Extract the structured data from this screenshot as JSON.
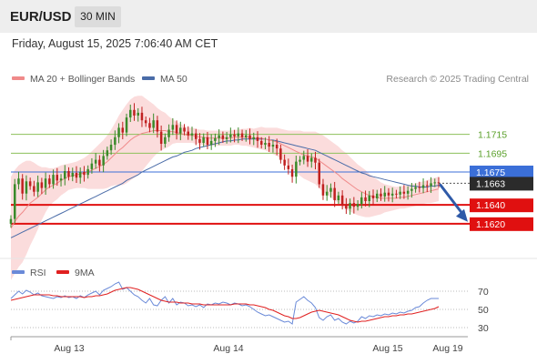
{
  "header": {
    "symbol": "EUR/USD",
    "timeframe": "30 MIN"
  },
  "datetime": "Friday, August 15, 2025 7:06:40 AM CET",
  "legend": {
    "ma20": "MA 20 + Bollinger Bands",
    "ma50": "MA 50",
    "credit": "Research © 2025 Trading Central"
  },
  "rsi_legend": {
    "rsi": "RSI",
    "ma9": "9MA"
  },
  "colors": {
    "ma20": "#f08a8a",
    "bollinger_fill": "#fbdcdc",
    "ma50": "#4a6ca8",
    "green_level": "#8cc05a",
    "green_text": "#5aa02a",
    "blue_level": "#3b6fd8",
    "red_level": "#e01010",
    "price_box": "#2b2b2b",
    "arrow": "#2f5aa8",
    "candle_up": "#3a8a2a",
    "candle_down": "#c02020",
    "rsi_line": "#6a8ad8",
    "rsi_ma": "#e02020"
  },
  "chart_data": [
    {
      "type": "candlestick",
      "title": "EUR/USD 30 MIN",
      "ylim": [
        1.1585,
        1.1765
      ],
      "x_ticks": [
        "Aug 13",
        "Aug 14",
        "Aug 15",
        "Aug 19"
      ],
      "levels": [
        {
          "value": 1.1715,
          "label": "1.1715",
          "kind": "resistance",
          "style": "green"
        },
        {
          "value": 1.1695,
          "label": "1.1695",
          "kind": "resistance",
          "style": "green"
        },
        {
          "value": 1.1675,
          "label": "1.1675",
          "kind": "resistance",
          "style": "blue"
        },
        {
          "value": 1.164,
          "label": "1.1640",
          "kind": "support",
          "style": "red"
        },
        {
          "value": 1.162,
          "label": "1.1620",
          "kind": "support",
          "style": "red"
        }
      ],
      "last_price": {
        "value": 1.1663,
        "label": "1.1663"
      },
      "forecast": {
        "from": 1.1663,
        "to": 1.1622,
        "direction": "down"
      },
      "close": [
        1.1625,
        1.1662,
        1.1668,
        1.1652,
        1.1665,
        1.166,
        1.1654,
        1.1664,
        1.1658,
        1.1668,
        1.1662,
        1.1672,
        1.1666,
        1.1668,
        1.1676,
        1.167,
        1.1674,
        1.1669,
        1.1675,
        1.1672,
        1.1678,
        1.1684,
        1.1688,
        1.1682,
        1.1692,
        1.1698,
        1.1704,
        1.1712,
        1.1722,
        1.1717,
        1.1733,
        1.1741,
        1.1735,
        1.1738,
        1.173,
        1.1727,
        1.1722,
        1.173,
        1.1718,
        1.1705,
        1.1712,
        1.172,
        1.1725,
        1.1716,
        1.1722,
        1.1718,
        1.1714,
        1.1716,
        1.171,
        1.1706,
        1.1712,
        1.1704,
        1.1708,
        1.1711,
        1.1714,
        1.171,
        1.1712,
        1.1715,
        1.1713,
        1.1716,
        1.1712,
        1.1714,
        1.171,
        1.1712,
        1.1708,
        1.1704,
        1.1706,
        1.1702,
        1.1704,
        1.17,
        1.1688,
        1.1682,
        1.1678,
        1.167,
        1.1686,
        1.1688,
        1.1692,
        1.1686,
        1.169,
        1.1685,
        1.1662,
        1.165,
        1.1654,
        1.1658,
        1.1645,
        1.165,
        1.164,
        1.1636,
        1.1642,
        1.1638,
        1.1641,
        1.1648,
        1.1644,
        1.165,
        1.1647,
        1.1652,
        1.1649,
        1.1653,
        1.165,
        1.1652,
        1.1651,
        1.1654,
        1.1652,
        1.1655,
        1.1657,
        1.1659,
        1.1658,
        1.1661,
        1.166,
        1.1663,
        1.1664,
        1.1663
      ],
      "ma20": [
        1.1615,
        1.1622,
        1.1628,
        1.1632,
        1.1637,
        1.1642,
        1.1645,
        1.1648,
        1.1652,
        1.1656,
        1.1659,
        1.1661,
        1.1663,
        1.1666,
        1.1668,
        1.167,
        1.1671,
        1.1672,
        1.1673,
        1.1674,
        1.1675,
        1.1677,
        1.1679,
        1.1681,
        1.1683,
        1.1686,
        1.169,
        1.1694,
        1.1698,
        1.1701,
        1.1705,
        1.1709,
        1.1712,
        1.1714,
        1.1716,
        1.1717,
        1.1718,
        1.1719,
        1.1719,
        1.1719,
        1.1719,
        1.1718,
        1.1718,
        1.1717,
        1.1716,
        1.1715,
        1.1714,
        1.1714,
        1.1713,
        1.1712,
        1.1712,
        1.1711,
        1.1711,
        1.1711,
        1.1711,
        1.1711,
        1.1711,
        1.1711,
        1.1712,
        1.1712,
        1.1712,
        1.1712,
        1.1712,
        1.1711,
        1.1711,
        1.1711,
        1.171,
        1.1709,
        1.1708,
        1.1707,
        1.1705,
        1.1703,
        1.1701,
        1.1699,
        1.1697,
        1.1695,
        1.1693,
        1.1692,
        1.1691,
        1.169,
        1.1687,
        1.1684,
        1.1681,
        1.1678,
        1.1675,
        1.1672,
        1.1668,
        1.1665,
        1.1662,
        1.1659,
        1.1656,
        1.1654,
        1.1652,
        1.165,
        1.1649,
        1.1648,
        1.1647,
        1.1647,
        1.1647,
        1.1647,
        1.1647,
        1.1648,
        1.1648,
        1.1649,
        1.165,
        1.1651,
        1.1652,
        1.1653,
        1.1654,
        1.1655,
        1.1656,
        1.1657
      ],
      "ma50": [
        1.1605,
        1.1607,
        1.1609,
        1.1611,
        1.1613,
        1.1615,
        1.1617,
        1.1619,
        1.1621,
        1.1623,
        1.1625,
        1.1627,
        1.1629,
        1.1631,
        1.1633,
        1.1635,
        1.1637,
        1.1639,
        1.1641,
        1.1643,
        1.1645,
        1.1647,
        1.1649,
        1.1651,
        1.1653,
        1.1655,
        1.1657,
        1.1659,
        1.1661,
        1.1663,
        1.1666,
        1.1668,
        1.167,
        1.1672,
        1.1675,
        1.1677,
        1.1679,
        1.1681,
        1.1683,
        1.1685,
        1.1687,
        1.1689,
        1.1691,
        1.1692,
        1.1694,
        1.1696,
        1.1697,
        1.1698,
        1.17,
        1.1701,
        1.1702,
        1.1703,
        1.1704,
        1.1705,
        1.1706,
        1.1707,
        1.1708,
        1.1708,
        1.1709,
        1.1709,
        1.171,
        1.171,
        1.171,
        1.171,
        1.171,
        1.171,
        1.171,
        1.1709,
        1.1709,
        1.1708,
        1.1707,
        1.1706,
        1.1705,
        1.1704,
        1.1703,
        1.1702,
        1.1701,
        1.17,
        1.1699,
        1.1698,
        1.1696,
        1.1694,
        1.1692,
        1.169,
        1.1688,
        1.1686,
        1.1684,
        1.1682,
        1.168,
        1.1678,
        1.1676,
        1.1674,
        1.1673,
        1.1671,
        1.167,
        1.1669,
        1.1668,
        1.1667,
        1.1666,
        1.1665,
        1.1664,
        1.1663,
        1.1662,
        1.1661,
        1.166,
        1.166,
        1.1659,
        1.1659,
        1.1659,
        1.166,
        1.166,
        1.1661
      ],
      "bb_width": [
        0.0055,
        0.0055,
        0.0054,
        0.0053,
        0.005,
        0.0045,
        0.004,
        0.0034,
        0.0028,
        0.0024,
        0.002,
        0.0018,
        0.0017,
        0.0016,
        0.0015,
        0.0014,
        0.0014,
        0.0014,
        0.0015,
        0.0016,
        0.0018,
        0.002,
        0.0022,
        0.0024,
        0.0026,
        0.0028,
        0.003,
        0.0033,
        0.0037,
        0.004,
        0.0042,
        0.0043,
        0.0043,
        0.0042,
        0.004,
        0.0036,
        0.0032,
        0.0028,
        0.0024,
        0.0021,
        0.0019,
        0.0016,
        0.0013,
        0.0011,
        0.001,
        0.0009,
        0.0008,
        0.0008,
        0.0008,
        0.0008,
        0.0008,
        0.0008,
        0.0008,
        0.0008,
        0.0008,
        0.0008,
        0.0008,
        0.0008,
        0.0008,
        0.0008,
        0.0009,
        0.0009,
        0.001,
        0.001,
        0.0011,
        0.0012,
        0.0012,
        0.0013,
        0.0014,
        0.0015,
        0.0016,
        0.0017,
        0.0018,
        0.002,
        0.0022,
        0.0024,
        0.0025,
        0.0026,
        0.0027,
        0.0028,
        0.0029,
        0.003,
        0.003,
        0.003,
        0.003,
        0.003,
        0.003,
        0.003,
        0.0029,
        0.0028,
        0.0027,
        0.0026,
        0.0025,
        0.0023,
        0.0021,
        0.0019,
        0.0017,
        0.0015,
        0.0014,
        0.0013,
        0.0012,
        0.0012,
        0.0012,
        0.0012,
        0.0012,
        0.0012,
        0.0012,
        0.0012,
        0.0012,
        0.0013,
        0.0013,
        0.0013
      ]
    },
    {
      "type": "line",
      "title": "RSI",
      "ylim": [
        20,
        80
      ],
      "y_ticks": [
        70,
        50,
        30
      ],
      "series": [
        {
          "name": "RSI",
          "values": [
            62,
            66,
            70,
            67,
            71,
            69,
            66,
            68,
            65,
            64,
            63,
            62,
            64,
            63,
            65,
            63,
            64,
            62,
            65,
            63,
            66,
            68,
            70,
            66,
            71,
            73,
            75,
            78,
            80,
            72,
            74,
            70,
            66,
            64,
            60,
            57,
            62,
            55,
            54,
            60,
            64,
            57,
            62,
            55,
            58,
            57,
            54,
            55,
            53,
            55,
            52,
            56,
            55,
            57,
            56,
            58,
            57,
            55,
            57,
            56,
            54,
            55,
            53,
            50,
            47,
            45,
            43,
            44,
            42,
            40,
            38,
            36,
            37,
            34,
            58,
            61,
            64,
            60,
            57,
            52,
            41,
            38,
            42,
            44,
            38,
            40,
            36,
            34,
            37,
            35,
            37,
            42,
            40,
            43,
            42,
            44,
            43,
            45,
            44,
            46,
            45,
            47,
            46,
            48,
            49,
            52,
            53,
            57,
            60,
            62,
            62,
            62
          ]
        },
        {
          "name": "9MA",
          "values": [
            60,
            61,
            62,
            63,
            64,
            65,
            66,
            66,
            66,
            66,
            66,
            65,
            65,
            64,
            64,
            64,
            64,
            64,
            64,
            63,
            64,
            64,
            65,
            65,
            66,
            67,
            69,
            71,
            72,
            73,
            74,
            74,
            73,
            72,
            70,
            68,
            66,
            64,
            62,
            60,
            59,
            58,
            58,
            58,
            57,
            57,
            57,
            56,
            56,
            56,
            55,
            55,
            55,
            55,
            55,
            55,
            55,
            55,
            56,
            56,
            56,
            56,
            55,
            55,
            54,
            53,
            52,
            50,
            49,
            47,
            45,
            43,
            42,
            40,
            40,
            41,
            43,
            45,
            47,
            48,
            49,
            48,
            47,
            46,
            45,
            44,
            42,
            40,
            38,
            37,
            36,
            37,
            37,
            38,
            39,
            40,
            41,
            42,
            42,
            43,
            43,
            44,
            44,
            45,
            45,
            46,
            47,
            48,
            49,
            50,
            51,
            53
          ]
        }
      ]
    }
  ]
}
